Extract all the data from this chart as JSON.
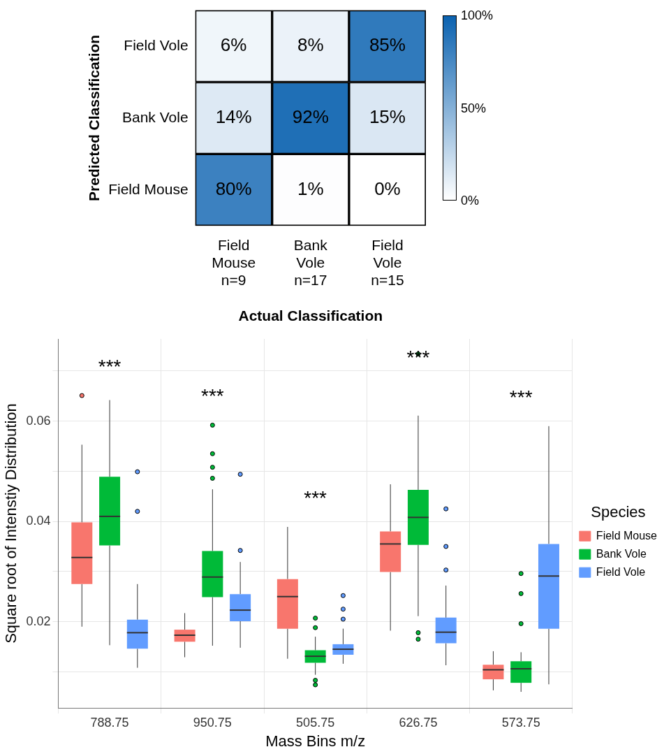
{
  "chart_data": [
    {
      "type": "heatmap",
      "xlabel": "Actual Classification",
      "ylabel": "Predicted Classification",
      "categories": [
        "Field Mouse n=9",
        "Bank Vole n=17",
        "Field Vole n=15"
      ],
      "y_categories": [
        "Field Vole",
        "Bank Vole",
        "Field Mouse"
      ],
      "cells": [
        [
          6,
          8,
          85
        ],
        [
          14,
          92,
          15
        ],
        [
          80,
          1,
          0
        ]
      ],
      "cell_labels": [
        [
          "6%",
          "8%",
          "85%"
        ],
        [
          "14%",
          "92%",
          "15%"
        ],
        [
          "80%",
          "1%",
          "0%"
        ]
      ],
      "color": "#0b62b0",
      "clim": [
        0,
        100
      ],
      "cticks": [
        {
          "value": 0,
          "label": "0%"
        },
        {
          "value": 50,
          "label": "50%"
        },
        {
          "value": 100,
          "label": "100%"
        }
      ]
    },
    {
      "type": "box",
      "xlabel": "Mass Bins m/z",
      "ylabel": "Square root of Intenstiy Distribution",
      "legend_title": "Species",
      "legend": "right",
      "grid": true,
      "categories": [
        "788.75",
        "950.75",
        "505.75",
        "626.75",
        "573.75"
      ],
      "ylim": [
        0.0028,
        0.0764
      ],
      "yticks": [
        {
          "value": 0.01,
          "label": null
        },
        0.02,
        {
          "value": 0.03,
          "label": null
        },
        0.04,
        {
          "value": 0.05,
          "label": null
        },
        0.06,
        {
          "value": 0.07,
          "label": null
        }
      ],
      "series": [
        {
          "name": "Field Mouse",
          "color": "#f8766d",
          "boxes": [
            {
              "low": 0.019,
              "q1": 0.0275,
              "median": 0.0328,
              "q3": 0.0398,
              "high": 0.0553,
              "outliers": [
                0.0651
              ]
            },
            {
              "low": 0.0129,
              "q1": 0.016,
              "median": 0.0173,
              "q3": 0.0184,
              "high": 0.0217
            },
            {
              "low": 0.0126,
              "q1": 0.0186,
              "median": 0.025,
              "q3": 0.0285,
              "high": 0.0389
            },
            {
              "low": 0.0182,
              "q1": 0.0299,
              "median": 0.0355,
              "q3": 0.038,
              "high": 0.0474
            },
            {
              "low": 0.0063,
              "q1": 0.0085,
              "median": 0.0104,
              "q3": 0.0114,
              "high": 0.0141
            }
          ]
        },
        {
          "name": "Bank Vole",
          "color": "#00ba38",
          "boxes": [
            {
              "low": 0.0153,
              "q1": 0.0352,
              "median": 0.041,
              "q3": 0.0489,
              "high": 0.0642
            },
            {
              "low": 0.0152,
              "q1": 0.0249,
              "median": 0.0289,
              "q3": 0.0341,
              "high": 0.0464,
              "outliers": [
                0.0592,
                0.0535,
                0.0508,
                0.0486
              ]
            },
            {
              "low": 0.0094,
              "q1": 0.0118,
              "median": 0.0131,
              "q3": 0.0143,
              "high": 0.017,
              "outliers": [
                0.0207,
                0.0188,
                0.0083,
                0.0074
              ]
            },
            {
              "low": 0.0211,
              "q1": 0.0353,
              "median": 0.0408,
              "q3": 0.0463,
              "high": 0.0611,
              "outliers": [
                0.0734,
                0.0178,
                0.0165
              ]
            },
            {
              "low": 0.006,
              "q1": 0.0078,
              "median": 0.0106,
              "q3": 0.0121,
              "high": 0.0139,
              "outliers": [
                0.0296,
                0.0256,
                0.0196
              ]
            }
          ]
        },
        {
          "name": "Field Vole",
          "color": "#619cff",
          "boxes": [
            {
              "low": 0.0108,
              "q1": 0.0146,
              "median": 0.0178,
              "q3": 0.0204,
              "high": 0.0275,
              "outliers": [
                0.0499,
                0.042
              ]
            },
            {
              "low": 0.0148,
              "q1": 0.0201,
              "median": 0.0223,
              "q3": 0.0255,
              "high": 0.0319,
              "outliers": [
                0.0494,
                0.0342
              ]
            },
            {
              "low": 0.0116,
              "q1": 0.0134,
              "median": 0.0145,
              "q3": 0.0155,
              "high": 0.0186,
              "outliers": [
                0.0252,
                0.0225,
                0.0205
              ]
            },
            {
              "low": 0.0113,
              "q1": 0.0157,
              "median": 0.0179,
              "q3": 0.0208,
              "high": 0.0272,
              "outliers": [
                0.0425,
                0.035,
                0.0303
              ]
            },
            {
              "low": 0.0075,
              "q1": 0.0186,
              "median": 0.0291,
              "q3": 0.0355,
              "high": 0.059
            }
          ]
        }
      ],
      "annotations": [
        "***",
        "***",
        "***",
        "***",
        "***"
      ]
    }
  ]
}
